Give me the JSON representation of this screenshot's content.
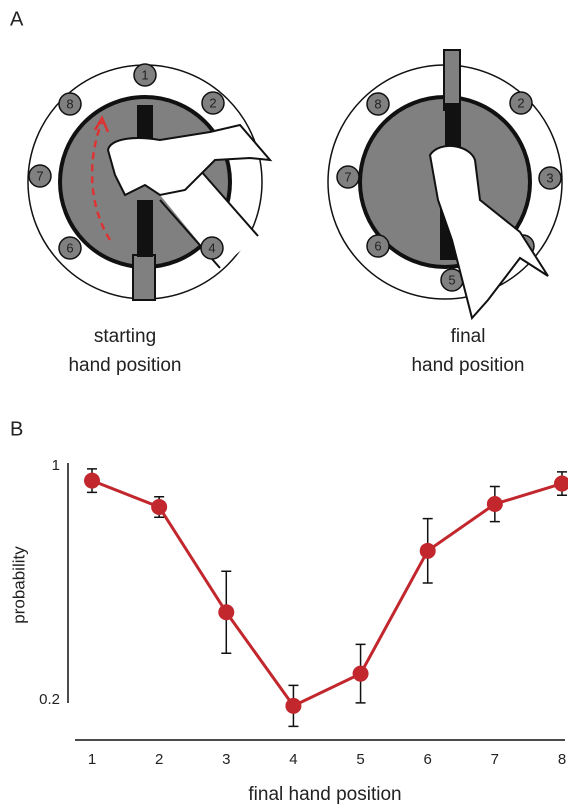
{
  "panel_a": {
    "label": "A",
    "left": {
      "numbers": [
        1,
        2,
        4,
        6,
        7,
        8
      ],
      "caption": [
        "starting",
        "hand position"
      ]
    },
    "right": {
      "numbers": [
        2,
        3,
        4,
        5,
        6,
        7,
        8
      ],
      "caption": [
        "final",
        "hand position"
      ]
    }
  },
  "chart_data": {
    "type": "line",
    "label": "B",
    "x": [
      1,
      2,
      3,
      4,
      5,
      6,
      7,
      8
    ],
    "series": [
      {
        "name": "probability",
        "color": "#c1272d",
        "values": [
          0.95,
          0.86,
          0.5,
          0.18,
          0.29,
          0.71,
          0.87,
          0.94
        ],
        "errors": [
          0.04,
          0.035,
          0.14,
          0.07,
          0.1,
          0.11,
          0.06,
          0.04
        ]
      }
    ],
    "xlabel": "final hand position",
    "ylabel": "probability",
    "xlim": [
      1,
      8
    ],
    "xticks": [
      1,
      2,
      3,
      4,
      5,
      6,
      7,
      8
    ],
    "ylim": [
      0.2,
      1
    ],
    "yticks": [
      0.2,
      1
    ]
  }
}
